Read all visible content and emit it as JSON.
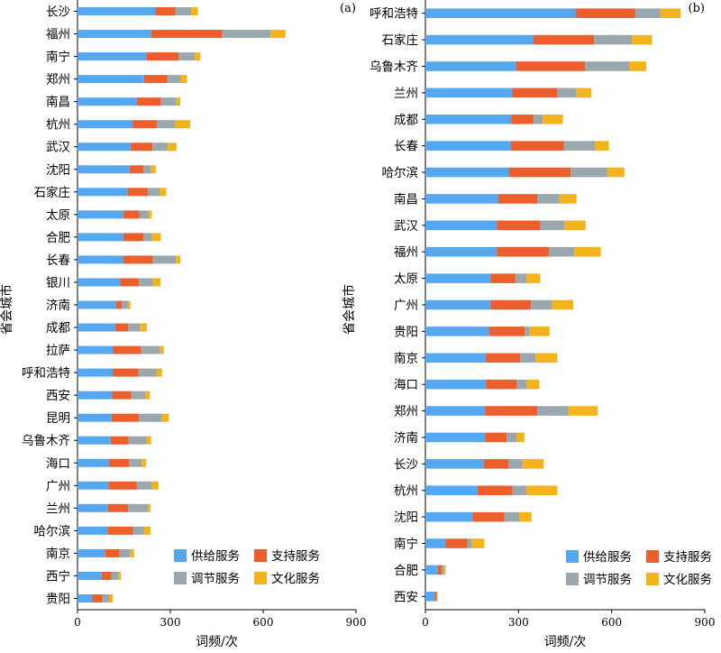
{
  "chart_data": [
    {
      "type": "bar",
      "stacked": true,
      "orientation": "horizontal",
      "panel_label": "(a)",
      "xlabel": "词频/次",
      "ylabel": "省会城市",
      "xlim": [
        0,
        900
      ],
      "xticks": [
        "0",
        "300",
        "600",
        "900"
      ],
      "grid": false,
      "legend_position": "bottom-right",
      "categories": [
        "长沙",
        "福州",
        "南宁",
        "郑州",
        "南昌",
        "杭州",
        "武汉",
        "沈阳",
        "石家庄",
        "太原",
        "合肥",
        "长春",
        "银川",
        "济南",
        "成都",
        "拉萨",
        "呼和浩特",
        "西安",
        "昆明",
        "乌鲁木齐",
        "海口",
        "广州",
        "兰州",
        "哈尔滨",
        "南京",
        "西宁",
        "贵阳"
      ],
      "series": [
        {
          "name": "供给服务",
          "color": "#55a8f0",
          "values": [
            252,
            238,
            222,
            215,
            192,
            178,
            172,
            168,
            162,
            148,
            148,
            148,
            138,
            125,
            122,
            115,
            115,
            112,
            110,
            107,
            102,
            100,
            98,
            97,
            88,
            78,
            48
          ]
        },
        {
          "name": "支持服务",
          "color": "#ec5f2c",
          "values": [
            65,
            228,
            105,
            75,
            78,
            78,
            70,
            45,
            65,
            52,
            65,
            95,
            60,
            18,
            42,
            90,
            82,
            62,
            88,
            58,
            65,
            92,
            65,
            82,
            48,
            32,
            32
          ]
        },
        {
          "name": "调节服务",
          "color": "#9aa8ae",
          "values": [
            50,
            158,
            52,
            42,
            50,
            60,
            48,
            25,
            38,
            30,
            28,
            75,
            45,
            20,
            38,
            62,
            58,
            45,
            75,
            58,
            40,
            48,
            65,
            35,
            35,
            22,
            22
          ]
        },
        {
          "name": "文化服务",
          "color": "#f4b21c",
          "values": [
            22,
            48,
            18,
            22,
            12,
            48,
            30,
            15,
            22,
            10,
            28,
            15,
            25,
            8,
            22,
            12,
            18,
            15,
            22,
            15,
            15,
            22,
            8,
            22,
            12,
            8,
            12
          ]
        }
      ]
    },
    {
      "type": "bar",
      "stacked": true,
      "orientation": "horizontal",
      "panel_label": "(b)",
      "xlabel": "词频/次",
      "ylabel": "省会城市",
      "xlim": [
        0,
        900
      ],
      "xticks": [
        "0",
        "300",
        "600",
        "900"
      ],
      "grid": false,
      "legend_position": "bottom-right",
      "categories": [
        "呼和浩特",
        "石家庄",
        "乌鲁木齐",
        "兰州",
        "成都",
        "长春",
        "哈尔滨",
        "南昌",
        "武汉",
        "福州",
        "太原",
        "广州",
        "贵阳",
        "南京",
        "海口",
        "郑州",
        "济南",
        "长沙",
        "杭州",
        "沈阳",
        "南宁",
        "合肥",
        "西安"
      ],
      "series": [
        {
          "name": "供给服务",
          "color": "#55a8f0",
          "values": [
            485,
            348,
            292,
            280,
            276,
            276,
            270,
            235,
            230,
            230,
            210,
            210,
            205,
            195,
            195,
            192,
            192,
            188,
            168,
            152,
            65,
            40,
            30
          ]
        },
        {
          "name": "支持服务",
          "color": "#ec5f2c",
          "values": [
            190,
            195,
            222,
            145,
            72,
            170,
            198,
            125,
            140,
            168,
            80,
            130,
            115,
            110,
            100,
            168,
            70,
            80,
            112,
            102,
            70,
            12,
            5
          ]
        },
        {
          "name": "调节服务",
          "color": "#9aa8ae",
          "values": [
            82,
            122,
            142,
            62,
            30,
            100,
            118,
            72,
            78,
            82,
            35,
            68,
            15,
            50,
            32,
            100,
            32,
            45,
            45,
            48,
            15,
            8,
            3
          ]
        },
        {
          "name": "文化服务",
          "color": "#f4b21c",
          "values": [
            65,
            65,
            55,
            48,
            65,
            45,
            55,
            55,
            68,
            85,
            45,
            68,
            65,
            70,
            40,
            95,
            25,
            68,
            100,
            40,
            40,
            5,
            2
          ]
        }
      ]
    }
  ]
}
